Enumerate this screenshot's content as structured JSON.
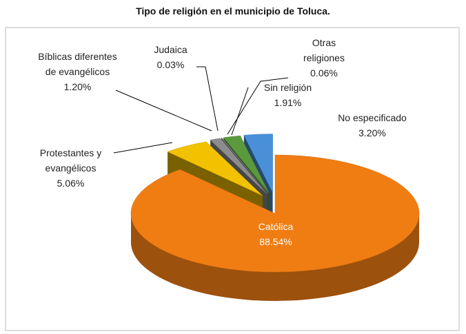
{
  "chart_data": {
    "type": "pie3d",
    "title": "Tipo de religión en el municipio de Toluca.",
    "categories": [
      "Católica",
      "Protestantes y evangélicos",
      "Bíblicas diferentes de evangélicos",
      "Judaica",
      "Otras religiones",
      "Sin religión",
      "No especificado"
    ],
    "values": [
      88.54,
      5.06,
      1.2,
      0.03,
      0.06,
      1.91,
      3.2
    ],
    "value_labels": [
      "88.54%",
      "5.06%",
      "1.20%",
      "0.03%",
      "0.06%",
      "1.91%",
      "3.20%"
    ],
    "colors": [
      "#f07d12",
      "#f2c200",
      "#8c8c8c",
      "#7f7f7f",
      "#a5a5a5",
      "#5b9a3c",
      "#4a90d9"
    ]
  }
}
